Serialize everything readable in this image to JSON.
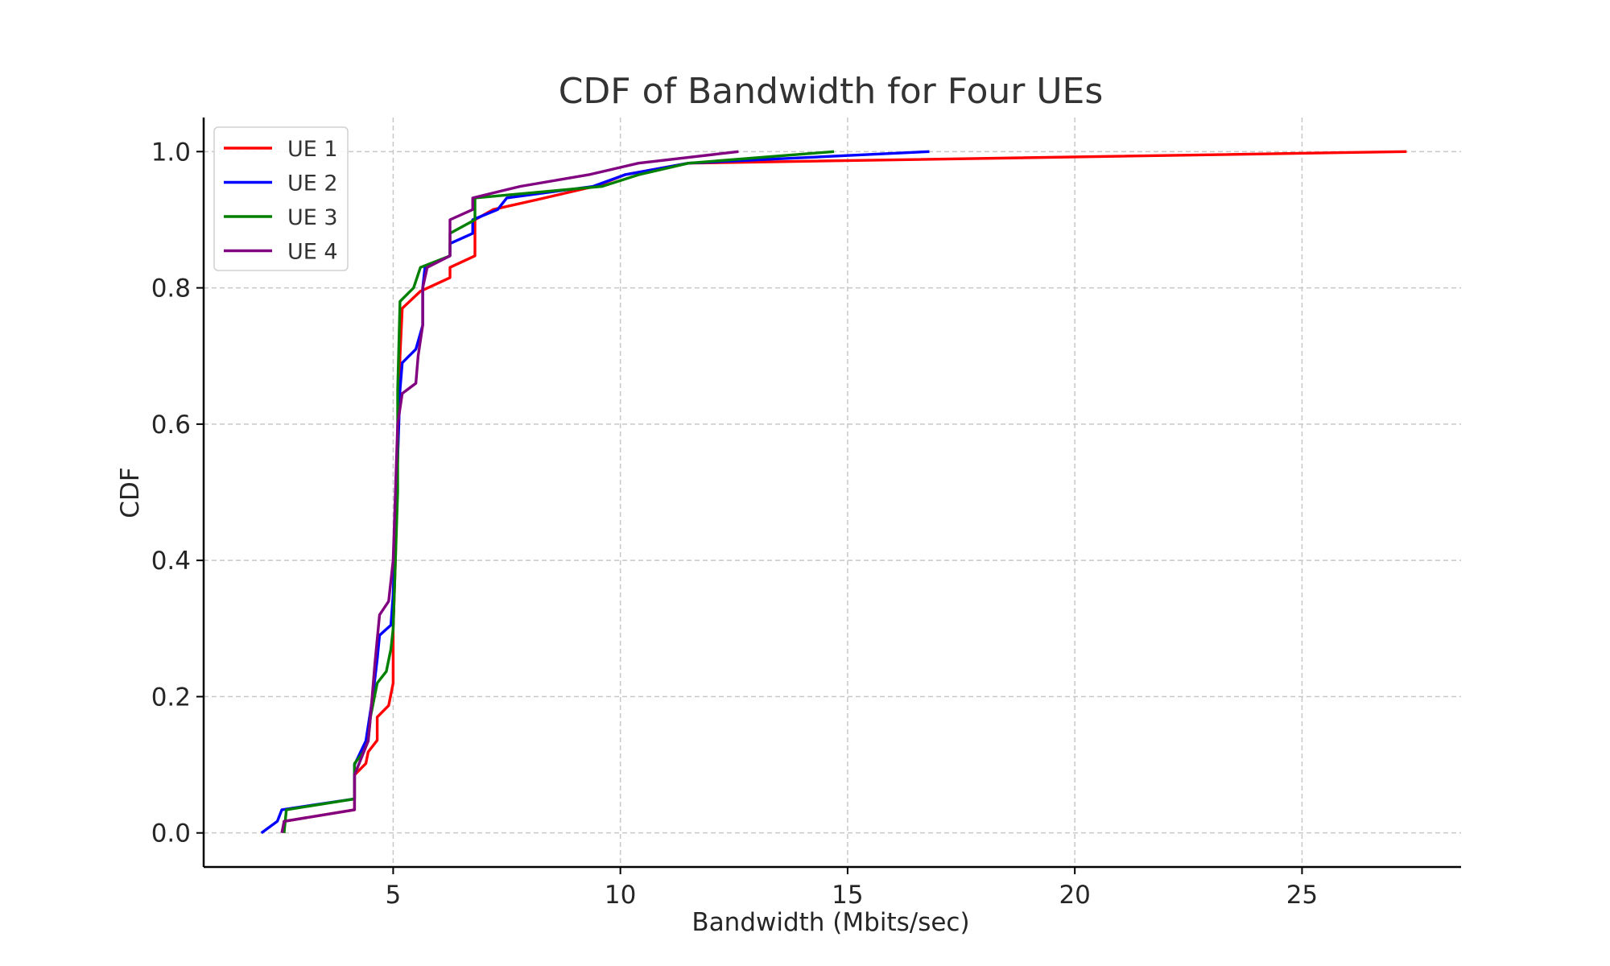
{
  "chart_data": {
    "type": "line",
    "title": "CDF of Bandwidth for Four UEs",
    "xlabel": "Bandwidth (Mbits/sec)",
    "ylabel": "CDF",
    "xlim": [
      0.83,
      28.5
    ],
    "ylim": [
      -0.05,
      1.05
    ],
    "xticks": [
      5,
      10,
      15,
      20,
      25
    ],
    "xtick_labels": [
      "5",
      "10",
      "15",
      "20",
      "25"
    ],
    "yticks": [
      0.0,
      0.2,
      0.4,
      0.6,
      0.8,
      1.0
    ],
    "ytick_labels": [
      "0.0",
      "0.2",
      "0.4",
      "0.6",
      "0.8",
      "1.0"
    ],
    "grid": true,
    "legend_position": "top-left",
    "series": [
      {
        "name": "UE 1",
        "color": "#ff0000",
        "points": [
          [
            2.6,
            0.0
          ],
          [
            2.6,
            0.017
          ],
          [
            4.15,
            0.034
          ],
          [
            4.15,
            0.085
          ],
          [
            4.4,
            0.102
          ],
          [
            4.45,
            0.119
          ],
          [
            4.65,
            0.136
          ],
          [
            4.65,
            0.17
          ],
          [
            4.9,
            0.187
          ],
          [
            5.0,
            0.22
          ],
          [
            5.0,
            0.3
          ],
          [
            5.05,
            0.4
          ],
          [
            5.1,
            0.55
          ],
          [
            5.15,
            0.7
          ],
          [
            5.2,
            0.77
          ],
          [
            5.6,
            0.795
          ],
          [
            6.25,
            0.815
          ],
          [
            6.25,
            0.83
          ],
          [
            6.8,
            0.847
          ],
          [
            6.8,
            0.9
          ],
          [
            7.2,
            0.915
          ],
          [
            8.2,
            0.93
          ],
          [
            9.5,
            0.95
          ],
          [
            10.1,
            0.966
          ],
          [
            11.5,
            0.983
          ],
          [
            27.3,
            1.0
          ]
        ]
      },
      {
        "name": "UE 2",
        "color": "#0000ff",
        "points": [
          [
            2.1,
            0.0
          ],
          [
            2.45,
            0.017
          ],
          [
            2.55,
            0.034
          ],
          [
            4.15,
            0.05
          ],
          [
            4.15,
            0.1
          ],
          [
            4.4,
            0.135
          ],
          [
            4.55,
            0.2
          ],
          [
            4.65,
            0.255
          ],
          [
            4.7,
            0.29
          ],
          [
            4.95,
            0.305
          ],
          [
            5.0,
            0.35
          ],
          [
            5.05,
            0.45
          ],
          [
            5.1,
            0.55
          ],
          [
            5.15,
            0.65
          ],
          [
            5.2,
            0.69
          ],
          [
            5.5,
            0.71
          ],
          [
            5.65,
            0.745
          ],
          [
            5.65,
            0.8
          ],
          [
            5.7,
            0.83
          ],
          [
            6.25,
            0.847
          ],
          [
            6.25,
            0.865
          ],
          [
            6.75,
            0.88
          ],
          [
            6.75,
            0.9
          ],
          [
            7.3,
            0.915
          ],
          [
            7.5,
            0.932
          ],
          [
            9.4,
            0.949
          ],
          [
            10.1,
            0.966
          ],
          [
            11.5,
            0.983
          ],
          [
            16.8,
            1.0
          ]
        ]
      },
      {
        "name": "UE 3",
        "color": "#008000",
        "points": [
          [
            2.6,
            0.0
          ],
          [
            2.65,
            0.034
          ],
          [
            4.15,
            0.05
          ],
          [
            4.15,
            0.102
          ],
          [
            4.35,
            0.119
          ],
          [
            4.45,
            0.135
          ],
          [
            4.5,
            0.17
          ],
          [
            4.65,
            0.22
          ],
          [
            4.85,
            0.237
          ],
          [
            4.95,
            0.27
          ],
          [
            5.0,
            0.3
          ],
          [
            5.05,
            0.4
          ],
          [
            5.1,
            0.5
          ],
          [
            5.1,
            0.65
          ],
          [
            5.15,
            0.78
          ],
          [
            5.45,
            0.8
          ],
          [
            5.6,
            0.83
          ],
          [
            6.25,
            0.847
          ],
          [
            6.25,
            0.88
          ],
          [
            6.8,
            0.9
          ],
          [
            6.8,
            0.932
          ],
          [
            9.6,
            0.949
          ],
          [
            10.4,
            0.966
          ],
          [
            11.5,
            0.983
          ],
          [
            14.7,
            1.0
          ]
        ]
      },
      {
        "name": "UE 4",
        "color": "#800080",
        "points": [
          [
            2.55,
            0.0
          ],
          [
            2.6,
            0.017
          ],
          [
            4.15,
            0.034
          ],
          [
            4.15,
            0.085
          ],
          [
            4.45,
            0.135
          ],
          [
            4.5,
            0.17
          ],
          [
            4.6,
            0.25
          ],
          [
            4.7,
            0.32
          ],
          [
            4.9,
            0.34
          ],
          [
            5.0,
            0.4
          ],
          [
            5.05,
            0.5
          ],
          [
            5.1,
            0.6
          ],
          [
            5.2,
            0.645
          ],
          [
            5.5,
            0.66
          ],
          [
            5.55,
            0.7
          ],
          [
            5.65,
            0.745
          ],
          [
            5.65,
            0.8
          ],
          [
            5.75,
            0.83
          ],
          [
            6.25,
            0.847
          ],
          [
            6.25,
            0.9
          ],
          [
            6.75,
            0.915
          ],
          [
            6.75,
            0.932
          ],
          [
            7.8,
            0.949
          ],
          [
            9.3,
            0.966
          ],
          [
            10.4,
            0.983
          ],
          [
            12.6,
            1.0
          ]
        ]
      }
    ]
  }
}
